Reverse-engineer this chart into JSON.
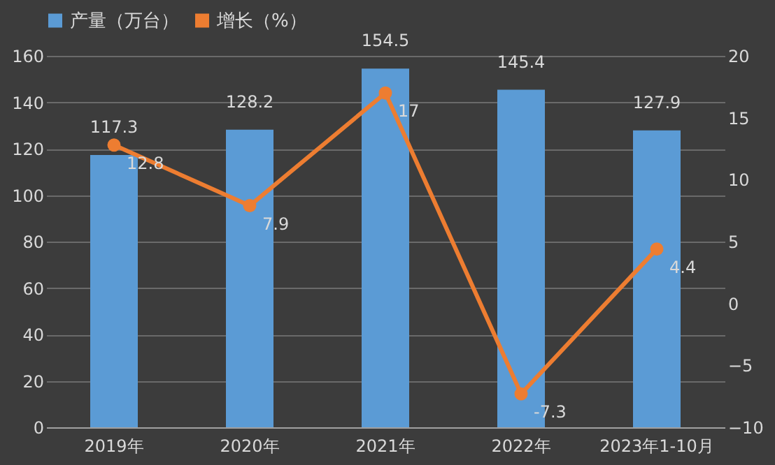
{
  "chart_data": {
    "type": "bar",
    "categories": [
      "2019年",
      "2020年",
      "2021年",
      "2022年",
      "2023年1-10月"
    ],
    "series": [
      {
        "name": "产量（万台）",
        "color": "#5b9bd5",
        "values": [
          117.3,
          128.2,
          154.5,
          145.4,
          127.9
        ]
      },
      {
        "name": "增长（%）",
        "type": "line",
        "axis": "y2",
        "color": "#ed7d31",
        "values": [
          12.8,
          7.9,
          17,
          -7.3,
          4.4
        ]
      }
    ],
    "ylim": [
      0,
      160
    ],
    "yticks": [
      0,
      20,
      40,
      60,
      80,
      100,
      120,
      140,
      160
    ],
    "y2lim": [
      -10,
      20
    ],
    "y2ticks": [
      -10,
      -5,
      0,
      5,
      10,
      15,
      20
    ],
    "grid": "y",
    "legend": "top",
    "marker": "circle",
    "line_style": "solid",
    "data_labels": true
  }
}
